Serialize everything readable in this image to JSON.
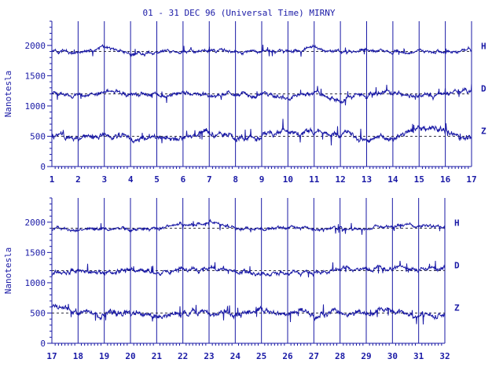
{
  "title": "01 - 31 DEC 96 (Universal Time) MIRNY",
  "colors": {
    "ink": "#1a1aa6",
    "background": "#ffffff"
  },
  "chart_data": [
    {
      "type": "line",
      "ylabel": "Nanotesla",
      "xlim": [
        1,
        17
      ],
      "ylim": [
        0,
        2400
      ],
      "yticks": [
        0,
        500,
        1000,
        1500,
        2000
      ],
      "xticks": [
        "1",
        "2",
        "3",
        "4",
        "5",
        "6",
        "7",
        "8",
        "9",
        "10",
        "11",
        "12",
        "13",
        "14",
        "15",
        "16",
        "17"
      ],
      "series": [
        {
          "name": "H",
          "baseline": 1900,
          "noise": 45,
          "x": [
            1,
            2,
            3,
            4,
            5,
            6,
            7,
            8,
            9,
            10,
            11,
            12,
            13,
            14,
            15,
            16,
            17
          ],
          "values": [
            1900,
            1890,
            1950,
            1880,
            1900,
            1895,
            1920,
            1900,
            1880,
            1900,
            1970,
            1890,
            1910,
            1890,
            1930,
            1900,
            1920
          ]
        },
        {
          "name": "D",
          "baseline": 1200,
          "noise": 60,
          "x": [
            1,
            2,
            3,
            4,
            5,
            6,
            7,
            8,
            9,
            10,
            11,
            12,
            13,
            14,
            15,
            16,
            17
          ],
          "values": [
            1200,
            1190,
            1230,
            1200,
            1180,
            1210,
            1170,
            1200,
            1190,
            1120,
            1250,
            1100,
            1190,
            1200,
            1160,
            1220,
            1230
          ]
        },
        {
          "name": "Z",
          "baseline": 500,
          "noise": 80,
          "x": [
            1,
            2,
            3,
            4,
            5,
            6,
            7,
            8,
            9,
            10,
            11,
            12,
            13,
            14,
            15,
            16,
            17
          ],
          "values": [
            500,
            480,
            520,
            470,
            500,
            480,
            550,
            490,
            500,
            600,
            560,
            540,
            470,
            480,
            620,
            580,
            450
          ]
        }
      ]
    },
    {
      "type": "line",
      "ylabel": "Nanotesla",
      "xlim": [
        17,
        32
      ],
      "ylim": [
        0,
        2400
      ],
      "yticks": [
        0,
        500,
        1000,
        1500,
        2000
      ],
      "xticks": [
        "17",
        "18",
        "19",
        "20",
        "21",
        "22",
        "23",
        "24",
        "25",
        "26",
        "27",
        "28",
        "29",
        "30",
        "31",
        "32"
      ],
      "series": [
        {
          "name": "H",
          "baseline": 1900,
          "noise": 45,
          "x": [
            17,
            18,
            19,
            20,
            21,
            22,
            23,
            24,
            25,
            26,
            27,
            28,
            29,
            30,
            31,
            32
          ],
          "values": [
            1880,
            1890,
            1900,
            1880,
            1900,
            1950,
            2000,
            1900,
            1880,
            1920,
            1900,
            1890,
            1900,
            1950,
            1950,
            1930
          ]
        },
        {
          "name": "D",
          "baseline": 1200,
          "noise": 60,
          "x": [
            17,
            18,
            19,
            20,
            21,
            22,
            23,
            24,
            25,
            26,
            27,
            28,
            29,
            30,
            31,
            32
          ],
          "values": [
            1150,
            1200,
            1180,
            1200,
            1150,
            1220,
            1240,
            1200,
            1120,
            1210,
            1180,
            1190,
            1200,
            1260,
            1230,
            1210
          ]
        },
        {
          "name": "Z",
          "baseline": 500,
          "noise": 80,
          "x": [
            17,
            18,
            19,
            20,
            21,
            22,
            23,
            24,
            25,
            26,
            27,
            28,
            29,
            30,
            31,
            32
          ],
          "values": [
            620,
            480,
            500,
            490,
            470,
            480,
            520,
            490,
            550,
            470,
            480,
            490,
            480,
            560,
            470,
            480
          ]
        }
      ]
    }
  ]
}
